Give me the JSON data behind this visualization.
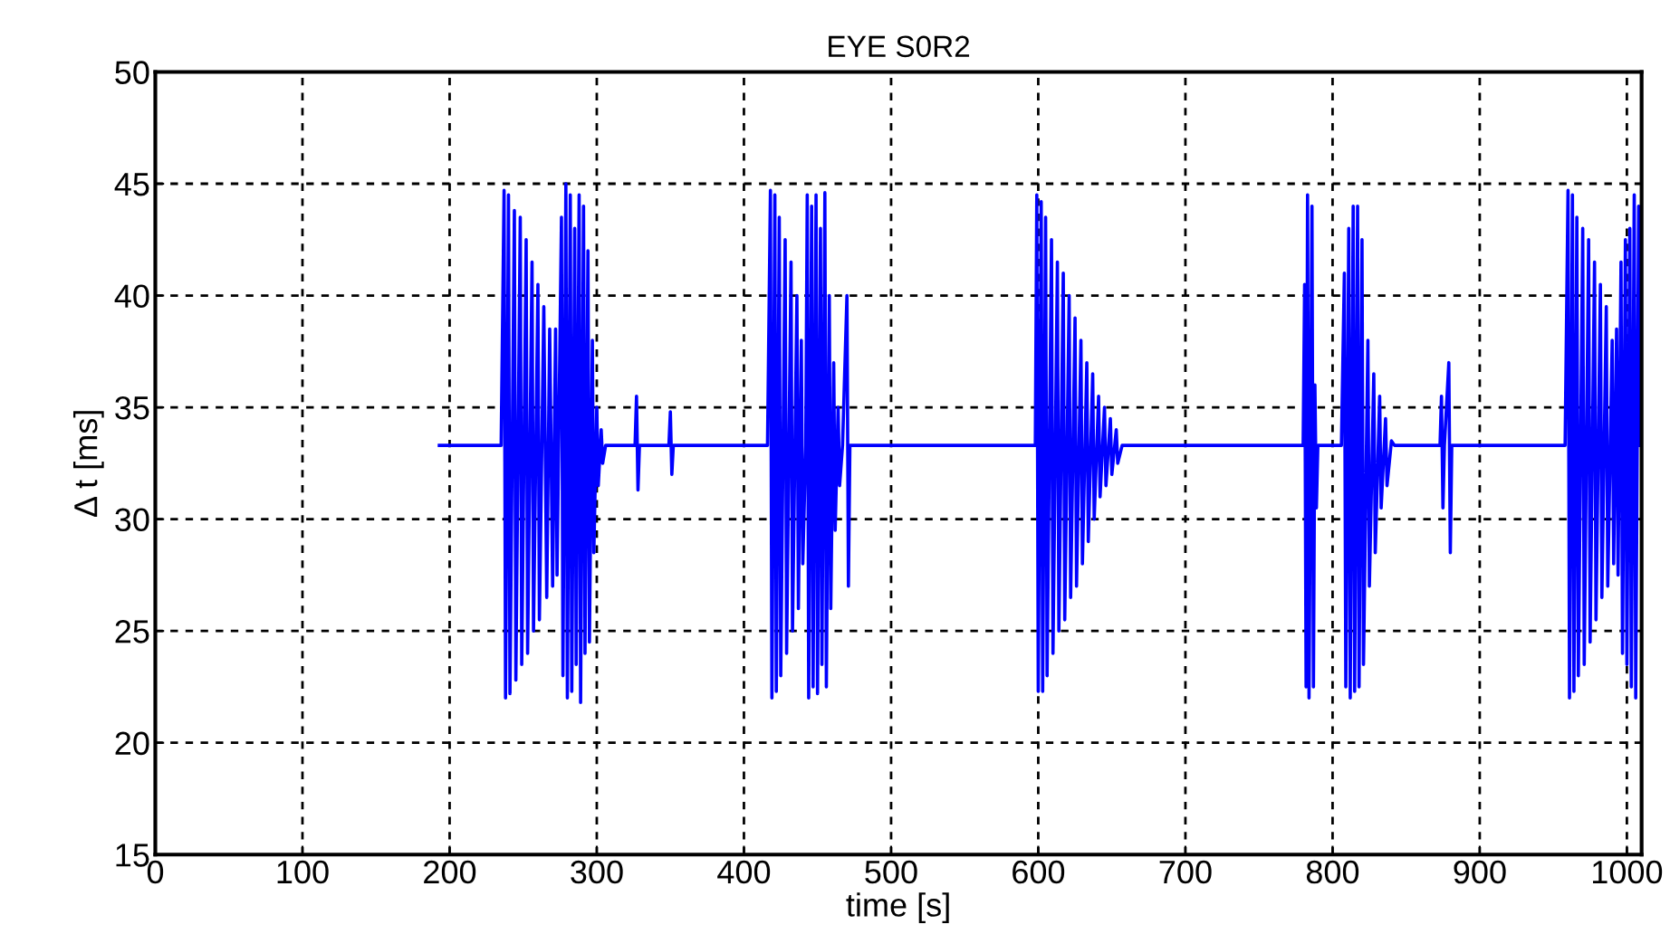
{
  "chart_data": {
    "type": "line",
    "title": "EYE S0R2",
    "xlabel": "time [s]",
    "ylabel": "Δ t [ms]",
    "xlim": [
      0,
      1010
    ],
    "xticks": [
      0,
      100,
      200,
      300,
      400,
      500,
      600,
      700,
      800,
      900,
      1000
    ],
    "ylim": [
      15,
      50
    ],
    "yticks": [
      15,
      20,
      25,
      30,
      35,
      40,
      45,
      50
    ],
    "grid": true,
    "line_style": "solid",
    "marker": "none",
    "series": [
      {
        "color": "#0000ff",
        "x": [
          193,
          235,
          237,
          238,
          240,
          241,
          244,
          245,
          248,
          249,
          252,
          253,
          256,
          257,
          260,
          261,
          264,
          266,
          268,
          270,
          272,
          273,
          276,
          277,
          279,
          280,
          282,
          283,
          285,
          286,
          288,
          289,
          291,
          292,
          294,
          295,
          297,
          298,
          300,
          301,
          303,
          304,
          306,
          326,
          327,
          328,
          329,
          349,
          350,
          351,
          352,
          416,
          418,
          419,
          421,
          422,
          424,
          425,
          428,
          429,
          432,
          433,
          436,
          437,
          439,
          440,
          442,
          443,
          444,
          446,
          447,
          449,
          450,
          452,
          453,
          455,
          456,
          458,
          459,
          461,
          462,
          464,
          465,
          467,
          470,
          471,
          472,
          475,
          598,
          599,
          600,
          602,
          603,
          605,
          606,
          609,
          610,
          613,
          614,
          617,
          618,
          621,
          622,
          625,
          626,
          629,
          630,
          633,
          634,
          637,
          638,
          641,
          642,
          645,
          646,
          649,
          650,
          653,
          654,
          657,
          780,
          781,
          782,
          783,
          784,
          786,
          787,
          788,
          789,
          790,
          806,
          808,
          809,
          811,
          812,
          814,
          815,
          817,
          818,
          820,
          821,
          824,
          825,
          828,
          829,
          832,
          833,
          836,
          837,
          840,
          842,
          873,
          874,
          875,
          876,
          879,
          880,
          881,
          958,
          960,
          961,
          963,
          964,
          966,
          967,
          970,
          971,
          974,
          975,
          978,
          979,
          982,
          983,
          986,
          987,
          990,
          991,
          993,
          994,
          996,
          997,
          999,
          1000,
          1002,
          1003,
          1005,
          1006,
          1008,
          1009
        ],
        "values": [
          33.3,
          33.3,
          44.7,
          22,
          44.5,
          22.2,
          43.8,
          22.8,
          43.5,
          23.5,
          42.5,
          24,
          41.5,
          25,
          40.5,
          25.5,
          39.5,
          26.5,
          38.5,
          27,
          38.5,
          27.5,
          43.5,
          23,
          45,
          22,
          44.5,
          22.3,
          43,
          23.5,
          44.5,
          21.8,
          44,
          24,
          42,
          24.5,
          38,
          28.5,
          35,
          31.5,
          34,
          32.5,
          33.3,
          33.3,
          35.5,
          31.3,
          33.3,
          33.3,
          34.8,
          32,
          33.3,
          33.3,
          44.7,
          22,
          44.5,
          22.3,
          43.5,
          23,
          42.5,
          24,
          41.5,
          25,
          40,
          26,
          38,
          28,
          33.3,
          44.5,
          22,
          44,
          22.5,
          44.5,
          22.2,
          43,
          23.5,
          44.6,
          22.5,
          40,
          26,
          37,
          29.5,
          35,
          31.5,
          33.3,
          40,
          27,
          33.3,
          33.3,
          33.3,
          44.5,
          22.3,
          44.2,
          22.3,
          43.5,
          23,
          42.5,
          24,
          41.5,
          25,
          41,
          25.5,
          40,
          26.5,
          39,
          27,
          38,
          28,
          37,
          29,
          36.5,
          30,
          35.5,
          31,
          35,
          31.5,
          34.5,
          32,
          34,
          32.5,
          33.3,
          33.3,
          40.5,
          22.5,
          44.5,
          22,
          44,
          22.5,
          36,
          30.5,
          33.3,
          33.3,
          41,
          22.5,
          43,
          22,
          44,
          22.3,
          44,
          22.5,
          42.5,
          23.5,
          38,
          27,
          36.5,
          28.5,
          35.5,
          30.5,
          34.5,
          31.5,
          33.5,
          33.3,
          33.3,
          35.5,
          30.5,
          33.3,
          37,
          28.5,
          33.3,
          33.3,
          44.7,
          22,
          44.5,
          22.3,
          43.5,
          23,
          43,
          23.5,
          42.5,
          24.5,
          41.5,
          25.5,
          40.5,
          26.5,
          39.5,
          27,
          38,
          28,
          38.5,
          27.5,
          41.5,
          24,
          42.5,
          23.5,
          43,
          22.5,
          44.5,
          22,
          44,
          33.3
        ]
      }
    ]
  }
}
